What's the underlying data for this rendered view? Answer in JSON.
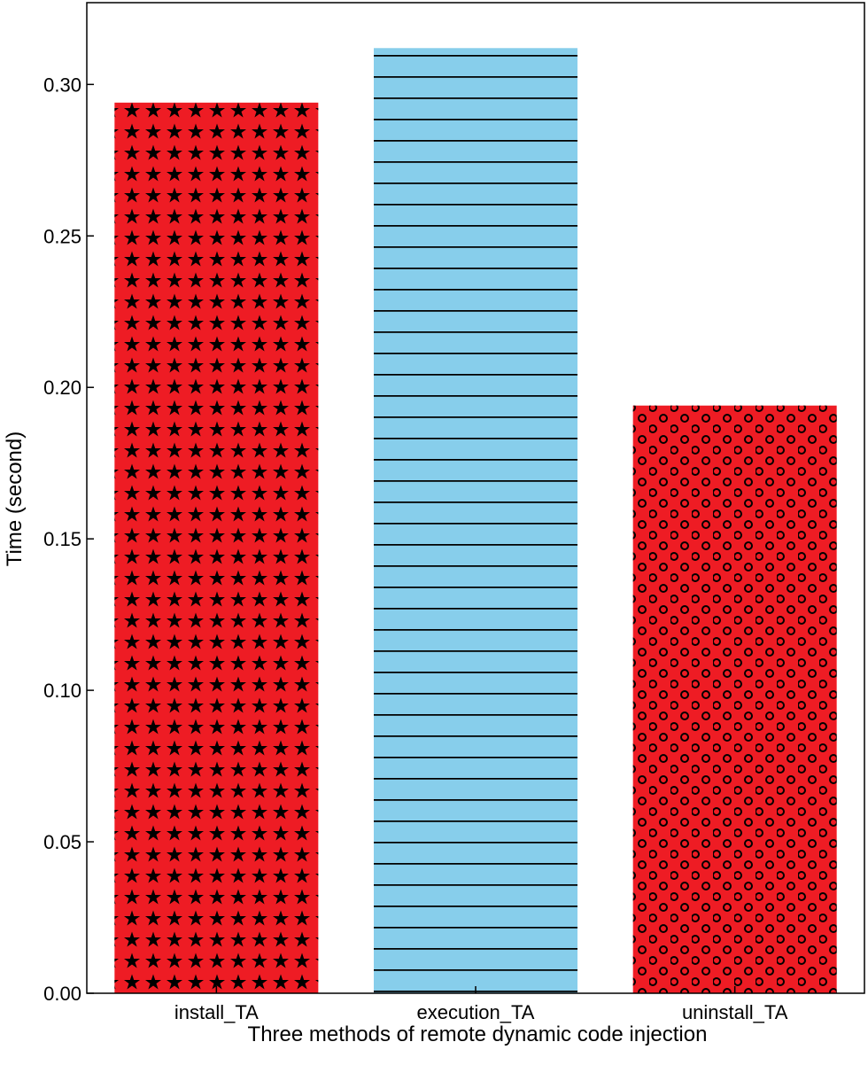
{
  "chart_data": {
    "type": "bar",
    "categories": [
      "install_TA",
      "execution_TA",
      "uninstall_TA"
    ],
    "values": [
      0.294,
      0.312,
      0.194
    ],
    "xlabel": "Three methods of remote dynamic code injection",
    "ylabel": "Time (second)",
    "ylim": [
      0,
      0.327
    ],
    "yticks": [
      "0.00",
      "0.05",
      "0.10",
      "0.15",
      "0.20",
      "0.25",
      "0.30"
    ],
    "grid": false,
    "legend": "none",
    "bar_styles": [
      {
        "fill": "#ee1c24",
        "pattern": "stars",
        "pattern_color": "#000000"
      },
      {
        "fill": "#87ceeb",
        "pattern": "horizontal-lines",
        "pattern_color": "#000000"
      },
      {
        "fill": "#ee1c24",
        "pattern": "circles",
        "pattern_color": "#000000"
      }
    ]
  }
}
